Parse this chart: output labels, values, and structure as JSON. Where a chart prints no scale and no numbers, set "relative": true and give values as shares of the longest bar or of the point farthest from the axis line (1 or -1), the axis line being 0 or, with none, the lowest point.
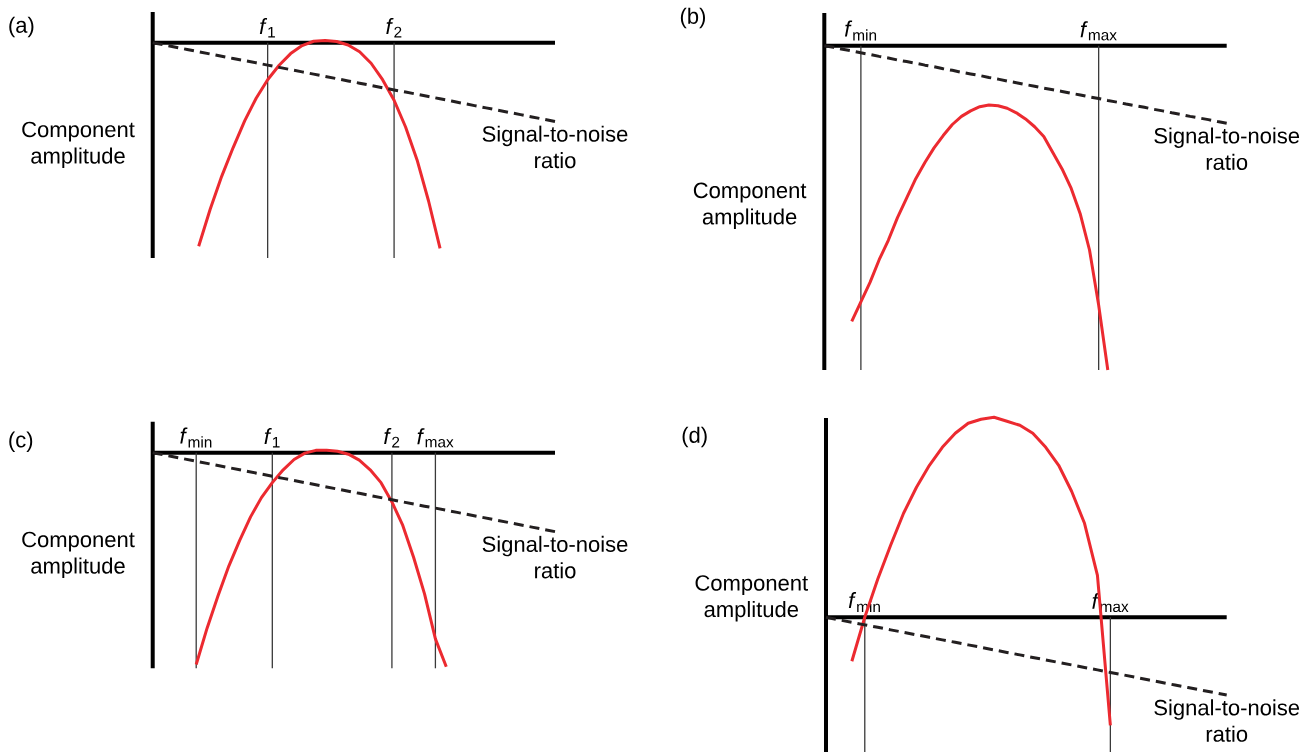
{
  "chart_data": [
    {
      "type": "line",
      "title": "(a)",
      "ylabel": "Component amplitude",
      "relative": true,
      "grid": "x",
      "categories": [
        null,
        null,
        null,
        null,
        null,
        null,
        null,
        null,
        null,
        null,
        "*f*$_{1}$",
        null,
        null,
        null,
        null,
        null,
        null,
        null,
        null,
        null,
        null,
        "*f*$_{2}$",
        null,
        null,
        null,
        null,
        null,
        null,
        null,
        null,
        null,
        null,
        null,
        null,
        null,
        null
      ],
      "series": [
        {
          "color": "#ec2a30",
          "values": [
            null,
            null,
            null,
            null,
            -0.99,
            -0.81,
            -0.65,
            -0.51,
            -0.38,
            -0.27,
            -0.18,
            -0.11,
            -0.053,
            -0.014,
            0.007,
            0.011,
            0.006,
            -0.011,
            -0.044,
            -0.1,
            -0.18,
            -0.28,
            -0.41,
            -0.57,
            -0.77,
            -1.0,
            null,
            null,
            null,
            null,
            null,
            null,
            null,
            null,
            null,
            null
          ]
        },
        {
          "name": "Signal-to-noise ratio",
          "color": "#231f20",
          "line_style": "dashed",
          "values": [
            0,
            -0.011,
            -0.022,
            -0.033,
            -0.044,
            -0.055,
            -0.066,
            -0.077,
            -0.087,
            -0.098,
            -0.109,
            -0.12,
            -0.131,
            -0.142,
            -0.153,
            -0.164,
            -0.175,
            -0.186,
            -0.197,
            -0.208,
            -0.219,
            -0.23,
            -0.24,
            -0.251,
            -0.262,
            -0.273,
            -0.284,
            -0.295,
            -0.306,
            -0.317,
            -0.328,
            -0.339,
            -0.35,
            -0.361,
            -0.372,
            -0.383
          ]
        }
      ]
    },
    {
      "type": "line",
      "title": "(b)",
      "ylabel": "Component amplitude",
      "relative": true,
      "grid": "x",
      "categories": [
        null,
        null,
        null,
        null,
        "*f*$_{min}$",
        null,
        null,
        null,
        null,
        null,
        null,
        null,
        null,
        null,
        null,
        null,
        null,
        null,
        null,
        null,
        null,
        null,
        null,
        null,
        null,
        null,
        null,
        null,
        null,
        null,
        "*f*$_{max}$",
        null,
        null,
        null,
        null,
        null,
        null,
        null,
        null,
        null,
        null,
        null,
        null,
        null,
        null
      ],
      "series": [
        {
          "color": "#ec2a30",
          "values": [
            null,
            null,
            null,
            -0.85,
            -0.79,
            -0.73,
            -0.66,
            -0.6,
            -0.53,
            -0.47,
            -0.41,
            -0.36,
            -0.315,
            -0.277,
            -0.243,
            -0.218,
            -0.201,
            -0.188,
            -0.183,
            -0.185,
            -0.193,
            -0.207,
            -0.226,
            -0.25,
            -0.28,
            -0.33,
            -0.38,
            -0.44,
            -0.52,
            -0.63,
            -0.8,
            -1.0,
            null,
            null,
            null,
            null,
            null,
            null,
            null,
            null,
            null,
            null,
            null,
            null,
            null
          ]
        },
        {
          "name": "Signal-to-noise ratio",
          "color": "#231f20",
          "line_style": "dashed",
          "values": [
            0,
            -0.005,
            -0.011,
            -0.016,
            -0.022,
            -0.027,
            -0.033,
            -0.038,
            -0.044,
            -0.049,
            -0.054,
            -0.06,
            -0.065,
            -0.071,
            -0.076,
            -0.082,
            -0.087,
            -0.092,
            -0.098,
            -0.103,
            -0.109,
            -0.114,
            -0.12,
            -0.125,
            -0.131,
            -0.136,
            -0.141,
            -0.147,
            -0.152,
            -0.158,
            -0.163,
            -0.169,
            -0.174,
            -0.18,
            -0.185,
            -0.19,
            -0.196,
            -0.201,
            -0.207,
            -0.212,
            -0.218,
            -0.223,
            -0.228,
            -0.234,
            -0.239
          ]
        }
      ]
    },
    {
      "type": "line",
      "title": "(c)",
      "ylabel": "Component amplitude",
      "relative": true,
      "grid": "x",
      "categories": [
        null,
        null,
        null,
        null,
        "*f*$_{min}$",
        null,
        null,
        null,
        null,
        null,
        null,
        "*f*$_{1}$",
        null,
        null,
        null,
        null,
        null,
        null,
        null,
        null,
        null,
        null,
        "*f*$_{2}$",
        null,
        null,
        null,
        "*f*$_{max}$",
        null,
        null,
        null,
        null,
        null,
        null,
        null,
        null,
        null,
        null,
        null
      ],
      "series": [
        {
          "color": "#ec2a30",
          "values": [
            null,
            null,
            null,
            null,
            -0.99,
            -0.82,
            -0.67,
            -0.53,
            -0.41,
            -0.3,
            -0.21,
            -0.14,
            -0.08,
            -0.032,
            -0.002,
            0.011,
            0.011,
            0.007,
            -0.007,
            -0.035,
            -0.08,
            -0.14,
            -0.23,
            -0.34,
            -0.49,
            -0.66,
            -0.87,
            -1.0,
            null,
            null,
            null,
            null,
            null,
            null,
            null,
            null,
            null,
            null
          ]
        },
        {
          "name": "Signal-to-noise ratio",
          "color": "#231f20",
          "line_style": "dashed",
          "values": [
            0,
            -0.01,
            -0.02,
            -0.03,
            -0.04,
            -0.05,
            -0.06,
            -0.07,
            -0.08,
            -0.09,
            -0.1,
            -0.11,
            -0.12,
            -0.13,
            -0.14,
            -0.15,
            -0.16,
            -0.17,
            -0.18,
            -0.19,
            -0.2,
            -0.21,
            -0.22,
            -0.23,
            -0.24,
            -0.25,
            -0.259,
            -0.269,
            -0.279,
            -0.289,
            -0.299,
            -0.309,
            -0.319,
            -0.329,
            -0.339,
            -0.349,
            -0.359,
            -0.369
          ]
        }
      ]
    },
    {
      "type": "line",
      "title": "(d)",
      "ylabel": "Component amplitude",
      "relative": true,
      "categories": [
        null,
        null,
        null,
        "*f*$_{min}$",
        null,
        null,
        null,
        null,
        null,
        null,
        null,
        null,
        null,
        null,
        null,
        null,
        null,
        null,
        null,
        null,
        null,
        null,
        "*f*$_{max}$",
        null,
        null,
        null,
        null,
        null,
        null,
        null,
        null,
        null
      ],
      "series": [
        {
          "color": "#ec2a30",
          "values": [
            null,
            null,
            -0.22,
            0.0,
            0.19,
            0.36,
            0.52,
            0.65,
            0.76,
            0.85,
            0.92,
            0.97,
            0.99,
            1.0,
            0.98,
            0.96,
            0.92,
            0.85,
            0.76,
            0.63,
            0.47,
            0.21,
            -0.54,
            null,
            null,
            null,
            null,
            null,
            null,
            null,
            null,
            null
          ]
        },
        {
          "name": "Signal-to-noise ratio",
          "color": "#231f20",
          "line_style": "dashed",
          "values": [
            0,
            -0.013,
            -0.025,
            -0.038,
            -0.05,
            -0.063,
            -0.075,
            -0.088,
            -0.1,
            -0.113,
            -0.125,
            -0.138,
            -0.15,
            -0.163,
            -0.176,
            -0.188,
            -0.201,
            -0.213,
            -0.226,
            -0.238,
            -0.251,
            -0.263,
            -0.276,
            -0.288,
            -0.301,
            -0.314,
            -0.326,
            -0.339,
            -0.351,
            -0.364,
            -0.376,
            -0.389
          ]
        }
      ],
      "ref_lines": [
        {
          "axis": "x",
          "value": "*f*$_{min}$",
          "color": "#3a3a3a"
        },
        {
          "axis": "x",
          "value": "*f*$_{max}$",
          "color": "#3a3a3a"
        }
      ]
    }
  ]
}
